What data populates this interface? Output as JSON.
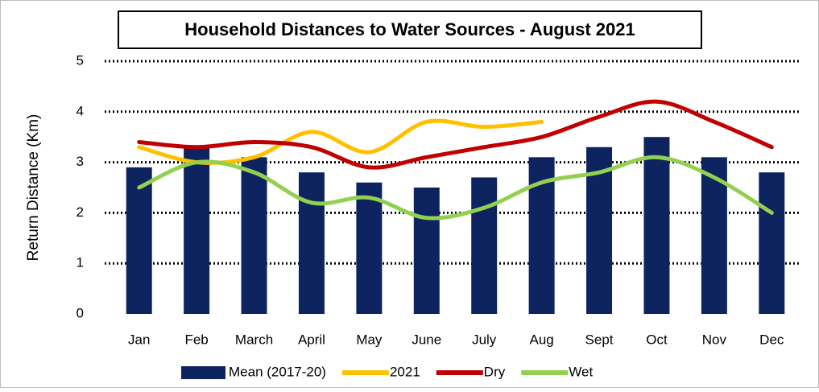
{
  "chart_data": {
    "type": "bar_line",
    "title": "Household Distances to Water Sources -  August 2021",
    "y_label": "Return Distance (Km)",
    "categories": [
      "Jan",
      "Feb",
      "March",
      "April",
      "May",
      "June",
      "July",
      "Aug",
      "Sept",
      "Oct",
      "Nov",
      "Dec"
    ],
    "series": [
      {
        "name": "Mean (2017-20)",
        "kind": "bar",
        "color": "#0d2461",
        "values": [
          2.9,
          3.3,
          3.1,
          2.8,
          2.6,
          2.5,
          2.7,
          3.1,
          3.3,
          3.5,
          3.1,
          2.8
        ]
      },
      {
        "name": "2021",
        "kind": "line",
        "color": "#ffc000",
        "values": [
          3.3,
          3.0,
          3.1,
          3.6,
          3.2,
          3.8,
          3.7,
          3.8,
          null,
          null,
          null,
          null
        ]
      },
      {
        "name": "Dry",
        "kind": "line",
        "color": "#c00000",
        "values": [
          3.4,
          3.3,
          3.4,
          3.3,
          2.9,
          3.1,
          3.3,
          3.5,
          3.9,
          4.2,
          3.8,
          3.3
        ]
      },
      {
        "name": "Wet",
        "kind": "line",
        "color": "#92d050",
        "values": [
          2.5,
          3.0,
          2.8,
          2.2,
          2.3,
          1.9,
          2.1,
          2.6,
          2.8,
          3.1,
          2.7,
          2.0
        ]
      }
    ],
    "ylim": [
      0,
      5
    ],
    "yticks": [
      0,
      1,
      2,
      3,
      4,
      5
    ],
    "grid": true,
    "legend": "bottom"
  }
}
